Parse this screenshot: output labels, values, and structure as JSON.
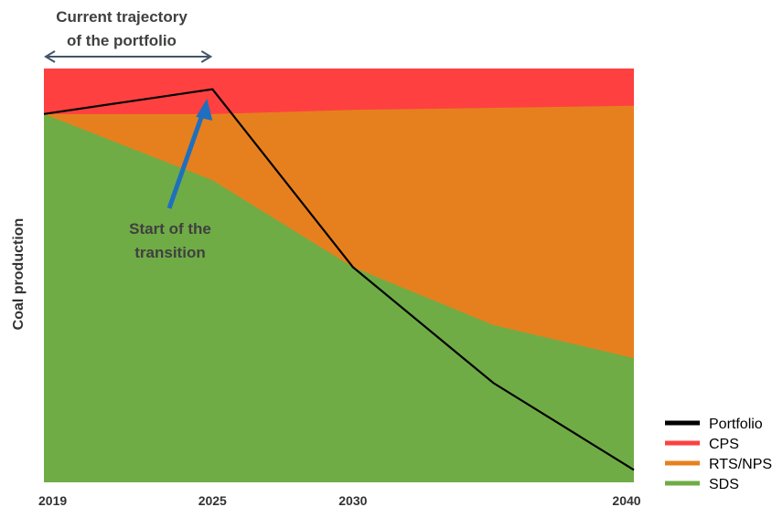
{
  "chart_data": {
    "type": "area",
    "ylabel": "Coal production",
    "x": [
      2019,
      2025,
      2030,
      2035,
      2040
    ],
    "x_ticks": [
      "2019",
      "2025",
      "2030",
      "2040"
    ],
    "x_tick_values": [
      2019,
      2025,
      2030,
      2040
    ],
    "ylim": [
      0,
      100
    ],
    "grid": false,
    "legend_position": "bottom-right",
    "series": [
      {
        "name": "CPS",
        "type": "area",
        "color": "#ff4040",
        "x": [
          2019,
          2040
        ],
        "values": [
          100,
          100
        ]
      },
      {
        "name": "RTS/NPS",
        "type": "area",
        "color": "#e6801e",
        "x": [
          2019,
          2025,
          2030,
          2040
        ],
        "values": [
          89,
          89,
          90,
          91
        ]
      },
      {
        "name": "SDS",
        "type": "area",
        "color": "#6fac46",
        "x": [
          2019,
          2025,
          2030,
          2035,
          2040
        ],
        "values": [
          89,
          73,
          52,
          38,
          30
        ]
      },
      {
        "name": "Portfolio",
        "type": "line",
        "color": "#000000",
        "x": [
          2019,
          2025,
          2030,
          2035,
          2040
        ],
        "values": [
          89,
          95,
          52,
          24,
          3
        ]
      }
    ],
    "annotations": {
      "trajectory": {
        "line1": "Current trajectory",
        "line2": "of the portfolio",
        "x_from": 2019,
        "x_to": 2025
      },
      "transition": {
        "line1": "Start of the",
        "line2": "transition",
        "points_to_x": 2025
      }
    },
    "legend": [
      "Portfolio",
      "CPS",
      "RTS/NPS",
      "SDS"
    ]
  }
}
